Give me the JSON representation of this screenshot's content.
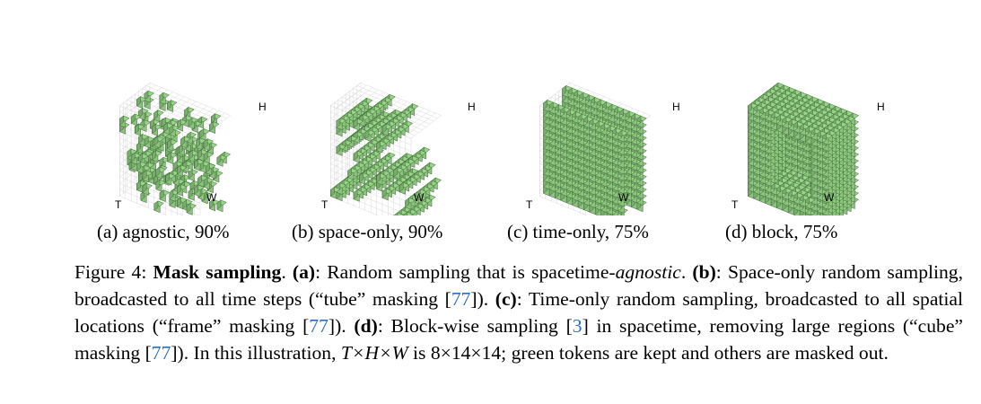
{
  "figure": {
    "panels": [
      {
        "id": "a",
        "subcaption": "(a) agnostic, 90%",
        "axis_T": "T",
        "axis_W": "W",
        "axis_H": "H"
      },
      {
        "id": "b",
        "subcaption": "(b) space-only, 90%",
        "axis_T": "T",
        "axis_W": "W",
        "axis_H": "H"
      },
      {
        "id": "c",
        "subcaption": "(c) time-only, 75%",
        "axis_T": "T",
        "axis_W": "W",
        "axis_H": "H"
      },
      {
        "id": "d",
        "subcaption": "(d) block, 75%",
        "axis_T": "T",
        "axis_W": "W",
        "axis_H": "H"
      }
    ],
    "colors": {
      "kept_token": "#8cc47e",
      "token_edge": "#3f6b38",
      "grid": "#d9d9d9"
    }
  },
  "caption": {
    "label": "Figure 4: ",
    "title": "Mask sampling",
    "p1": ". ",
    "a_tag": "(a)",
    "a_text": ": Random sampling that is spacetime-",
    "a_em": "agnostic",
    "a_end": ". ",
    "b_tag": "(b)",
    "b_text": ": Space-only random sampling, broadcasted to all time steps (“tube” masking [",
    "ref1": "77",
    "b_end": "]). ",
    "c_tag": "(c)",
    "c_text": ": Time-only random sampling, broadcasted to all spatial locations (“frame” masking [",
    "ref2": "77",
    "c_end": "]). ",
    "d_tag": "(d)",
    "d_text": ": Block-wise sampling [",
    "ref3": "3",
    "d_mid": "] in spacetime, removing large regions (“cube” masking [",
    "ref4": "77",
    "d_end": "]). In this illustration, ",
    "math": "T×H×W",
    "is_text": " is 8×14×14; green tokens are kept and others are masked out."
  }
}
